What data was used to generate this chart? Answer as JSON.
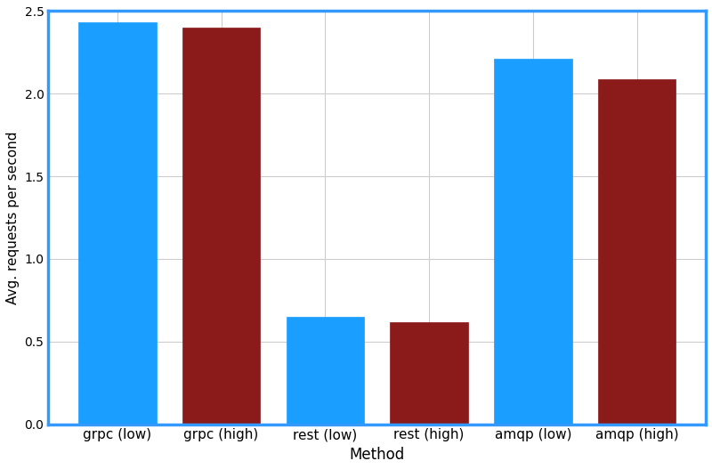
{
  "categories": [
    "grpc (low)",
    "grpc (high)",
    "rest (low)",
    "rest (high)",
    "amqp (low)",
    "amqp (high)"
  ],
  "values": [
    2.43,
    2.4,
    0.65,
    0.62,
    2.21,
    2.09
  ],
  "bar_colors": [
    "#1a9eff",
    "#8b1a1a",
    "#1a9eff",
    "#8b1a1a",
    "#1a9eff",
    "#8b1a1a"
  ],
  "bar_edge_colors": [
    "#1a9eff",
    "#8b1a1a",
    "#1a9eff",
    "#8b1a1a",
    "#1a9eff",
    "#8b1a1a"
  ],
  "xlabel": "Method",
  "ylabel": "Avg. requests per second",
  "ylim": [
    0,
    2.5
  ],
  "yticks": [
    0.0,
    0.5,
    1.0,
    1.5,
    2.0,
    2.5
  ],
  "grid_color": "#cccccc",
  "background_color": "#ffffff",
  "bar_width": 0.75,
  "border_color": "#3399ff",
  "border_linewidth": 2.5
}
